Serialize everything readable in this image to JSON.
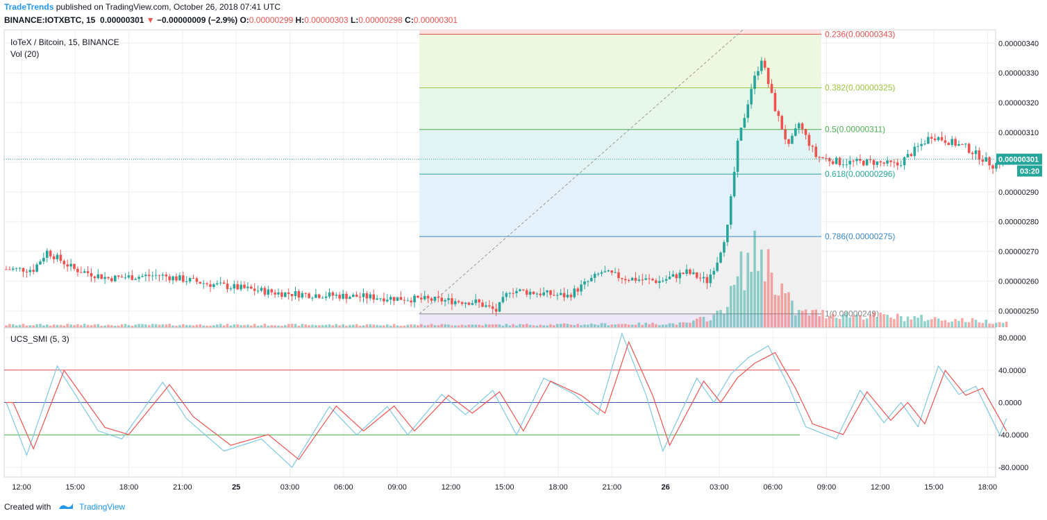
{
  "header": {
    "author": "TradeTrends",
    "published_text": " published on TradingView.com, October 26, 2018 07:41 UTC",
    "symbol_line": "BINANCE:IOTXBTC, 15",
    "last_price": "0.00000301",
    "change_arrow": "▼",
    "change": "−0.00000009 (−2.9%)",
    "o_label": "O:",
    "o_value": "0.00000299",
    "h_label": "H:",
    "h_value": "0.00000303",
    "l_label": "L:",
    "l_value": "0.00000298",
    "c_label": "C:",
    "c_value": "0.00000301"
  },
  "legend": {
    "symbol": "IoTeX / Bitcoin, 15, BINANCE",
    "volume": "Vol (20)",
    "indicator": "UCS_SMI (5, 3)"
  },
  "price_axis": {
    "ticks": [
      "0.00000340",
      "0.00000330",
      "0.00000320",
      "0.00000310",
      "0.00000290",
      "0.00000280",
      "0.00000270",
      "0.00000260",
      "0.00000250"
    ],
    "current_price": "0.00000301",
    "countdown": "03:20"
  },
  "smi_axis": {
    "ticks": [
      "80.0000",
      "40.0000",
      "0.0000",
      "-40.0000",
      "-80.0000"
    ]
  },
  "time_axis": {
    "ticks": [
      "12:00",
      "15:00",
      "18:00",
      "21:00",
      "25",
      "03:00",
      "06:00",
      "09:00",
      "12:00",
      "15:00",
      "18:00",
      "21:00",
      "26",
      "03:00",
      "06:00",
      "09:00",
      "12:00",
      "15:00",
      "18:00"
    ]
  },
  "fib_levels": [
    {
      "label": "0.236(0.00000343)",
      "price": 3.43,
      "color": "#e05050",
      "fill": "#fbe3e3"
    },
    {
      "label": "0.382(0.00000325)",
      "price": 3.25,
      "color": "#9bc43a",
      "fill": "#eef7e0"
    },
    {
      "label": "0.5(0.00000311)",
      "price": 3.11,
      "color": "#4caf50",
      "fill": "#e6f7e9"
    },
    {
      "label": "0.618(0.00000296)",
      "price": 2.96,
      "color": "#26a69a",
      "fill": "#e2f3f4"
    },
    {
      "label": "0.786(0.00000275)",
      "price": 2.75,
      "color": "#3a88c8",
      "fill": "#e4f0fa"
    },
    {
      "label": "1(0.00000249)",
      "price": 2.49,
      "color": "#888888",
      "fill": "#f0f0f0"
    }
  ],
  "chart_data": {
    "type": "candlestick",
    "symbol": "IOTXBTC",
    "interval": "15",
    "price_range": [
      2.445,
      3.445
    ],
    "price_unit_note": "x1e-6 BTC",
    "price_anchors": [
      {
        "t": 0,
        "p": 2.64
      },
      {
        "t": 8,
        "p": 2.64
      },
      {
        "t": 12,
        "p": 2.7
      },
      {
        "t": 20,
        "p": 2.64
      },
      {
        "t": 30,
        "p": 2.61
      },
      {
        "t": 45,
        "p": 2.62
      },
      {
        "t": 60,
        "p": 2.59
      },
      {
        "t": 80,
        "p": 2.56
      },
      {
        "t": 100,
        "p": 2.55
      },
      {
        "t": 120,
        "p": 2.54
      },
      {
        "t": 138,
        "p": 2.53
      },
      {
        "t": 144,
        "p": 2.5
      },
      {
        "t": 148,
        "p": 2.57
      },
      {
        "t": 165,
        "p": 2.55
      },
      {
        "t": 175,
        "p": 2.63
      },
      {
        "t": 182,
        "p": 2.61
      },
      {
        "t": 192,
        "p": 2.6
      },
      {
        "t": 200,
        "p": 2.63
      },
      {
        "t": 206,
        "p": 2.6
      },
      {
        "t": 209,
        "p": 2.67
      },
      {
        "t": 212,
        "p": 2.78
      },
      {
        "t": 215,
        "p": 3.06
      },
      {
        "t": 219,
        "p": 3.25
      },
      {
        "t": 222,
        "p": 3.35
      },
      {
        "t": 226,
        "p": 3.18
      },
      {
        "t": 230,
        "p": 3.05
      },
      {
        "t": 233,
        "p": 3.13
      },
      {
        "t": 238,
        "p": 3.02
      },
      {
        "t": 245,
        "p": 3.0
      },
      {
        "t": 255,
        "p": 3.0
      },
      {
        "t": 262,
        "p": 2.99
      },
      {
        "t": 272,
        "p": 3.09
      },
      {
        "t": 282,
        "p": 3.05
      },
      {
        "t": 290,
        "p": 2.99
      },
      {
        "t": 294,
        "p": 3.01
      }
    ],
    "volume_anchors": [
      {
        "t": 0,
        "v": 2
      },
      {
        "t": 150,
        "v": 2
      },
      {
        "t": 200,
        "v": 3
      },
      {
        "t": 209,
        "v": 10
      },
      {
        "t": 213,
        "v": 25
      },
      {
        "t": 216,
        "v": 45
      },
      {
        "t": 219,
        "v": 55
      },
      {
        "t": 222,
        "v": 60
      },
      {
        "t": 226,
        "v": 40
      },
      {
        "t": 232,
        "v": 12
      },
      {
        "t": 294,
        "v": 4
      }
    ],
    "smi_anchors": [
      {
        "t": 0,
        "v": 0
      },
      {
        "t": 6,
        "v": -65
      },
      {
        "t": 15,
        "v": 45
      },
      {
        "t": 27,
        "v": -35
      },
      {
        "t": 34,
        "v": -45
      },
      {
        "t": 46,
        "v": 25
      },
      {
        "t": 53,
        "v": -20
      },
      {
        "t": 64,
        "v": -60
      },
      {
        "t": 75,
        "v": -45
      },
      {
        "t": 84,
        "v": -80
      },
      {
        "t": 95,
        "v": -5
      },
      {
        "t": 103,
        "v": -40
      },
      {
        "t": 112,
        "v": -5
      },
      {
        "t": 118,
        "v": -40
      },
      {
        "t": 128,
        "v": 10
      },
      {
        "t": 135,
        "v": -15
      },
      {
        "t": 143,
        "v": 15
      },
      {
        "t": 150,
        "v": -40
      },
      {
        "t": 158,
        "v": 30
      },
      {
        "t": 167,
        "v": 10
      },
      {
        "t": 174,
        "v": -15
      },
      {
        "t": 181,
        "v": 85
      },
      {
        "t": 188,
        "v": 10
      },
      {
        "t": 193,
        "v": -60
      },
      {
        "t": 203,
        "v": 30
      },
      {
        "t": 208,
        "v": 0
      },
      {
        "t": 213,
        "v": 35
      },
      {
        "t": 218,
        "v": 55
      },
      {
        "t": 224,
        "v": 70
      },
      {
        "t": 230,
        "v": 20
      },
      {
        "t": 235,
        "v": -30
      },
      {
        "t": 244,
        "v": -45
      },
      {
        "t": 251,
        "v": 15
      },
      {
        "t": 258,
        "v": -25
      },
      {
        "t": 263,
        "v": 0
      },
      {
        "t": 268,
        "v": -30
      },
      {
        "t": 274,
        "v": 45
      },
      {
        "t": 280,
        "v": 10
      },
      {
        "t": 285,
        "v": 20
      },
      {
        "t": 292,
        "v": -40
      },
      {
        "t": 294,
        "v": -20
      }
    ],
    "smi_levels": [
      {
        "value": 40,
        "color": "#e05050"
      },
      {
        "value": 0,
        "color": "#3f51b5"
      },
      {
        "value": -40,
        "color": "#4caf50"
      }
    ],
    "smi_range": [
      -92,
      92
    ]
  },
  "colors": {
    "up": "#26a69a",
    "down": "#ef5350",
    "smi": "#7ec8e3",
    "signal": "#ef5350",
    "grid": "#eeeeee",
    "axis_text": "#131722",
    "price_label_bg": "#26a69a"
  }
}
